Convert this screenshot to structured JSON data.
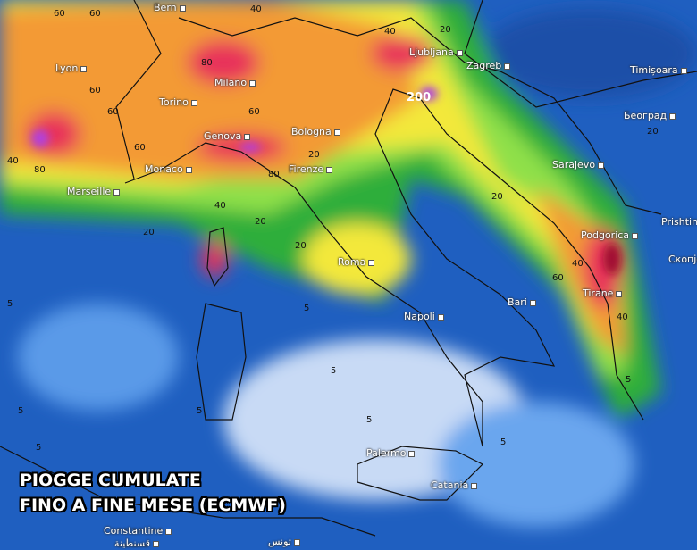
{
  "title_lines": [
    "PIOGGE CUMULATE",
    "FINO A FINE MESE (ECMWF)"
  ],
  "colors": {
    "very_low": "#c8daf5",
    "low": "#3f86e0",
    "base": "#1f5fc0",
    "green": "#2fae3a",
    "lime": "#8fe04a",
    "yellow": "#f3e83a",
    "orange": "#f39a35",
    "red": "#e8325a",
    "dark_red": "#a01030",
    "purple": "#b040e0"
  },
  "cities": [
    "Bern",
    "Lyon",
    "Milano",
    "Torino",
    "Genova",
    "Monaco",
    "Marseille",
    "Bologna",
    "Firenze",
    "Ljubljana",
    "Zagreb",
    "Timișoara",
    "Београд",
    "Sarajevo",
    "Podgorica",
    "Prishtina",
    "Скопје",
    "Tirane",
    "Roma",
    "Napoli",
    "Bari",
    "Palermo",
    "Catania",
    "Constantine",
    "قسنطينة",
    "تونس"
  ],
  "contour_labels": [
    "60",
    "60",
    "40",
    "80",
    "60",
    "60",
    "80",
    "40",
    "60",
    "60",
    "80",
    "40",
    "20",
    "20",
    "20",
    "20",
    "40",
    "20",
    "20",
    "40",
    "60",
    "40",
    "20",
    "5",
    "5",
    "5",
    "5",
    "5",
    "5",
    "5",
    "5",
    "5",
    "200"
  ]
}
